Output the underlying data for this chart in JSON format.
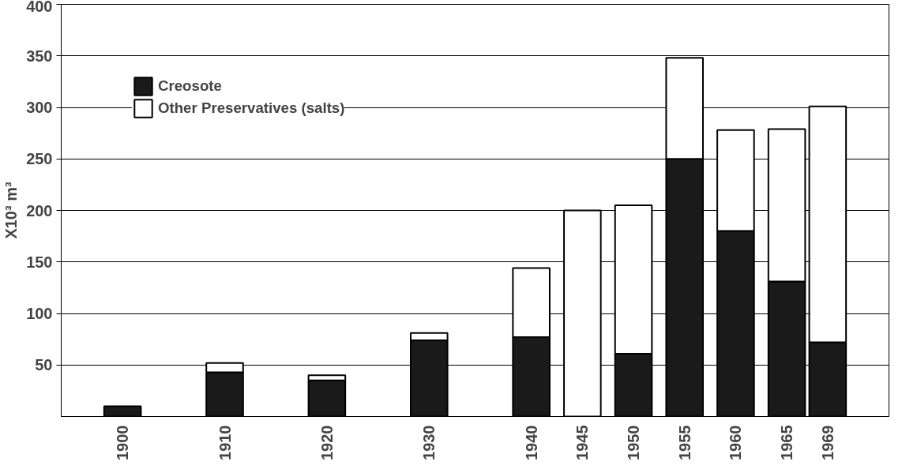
{
  "chart_data": {
    "type": "bar",
    "stacked": true,
    "ylabel": "X10³ m³",
    "x": [
      1900,
      1910,
      1920,
      1930,
      1940,
      1945,
      1950,
      1955,
      1960,
      1965,
      1969
    ],
    "xlim": [
      1894,
      1975
    ],
    "xticks": [
      1900,
      1910,
      1920,
      1930,
      1940,
      1945,
      1950,
      1955,
      1960,
      1965,
      1969
    ],
    "ylim": [
      0,
      400
    ],
    "yticks": [
      50,
      100,
      150,
      200,
      250,
      300,
      350,
      400
    ],
    "grid": "y",
    "legend": "top left",
    "series": [
      {
        "name": "Creosote",
        "color": "#1a1a1a",
        "values": [
          10,
          43,
          35,
          74,
          77,
          null,
          61,
          250,
          180,
          131,
          72
        ]
      },
      {
        "name": "Other Preservatives (salts)",
        "color": "#ffffff",
        "values": [
          null,
          9,
          5,
          7,
          67,
          200,
          144,
          98,
          98,
          148,
          229
        ]
      }
    ]
  }
}
